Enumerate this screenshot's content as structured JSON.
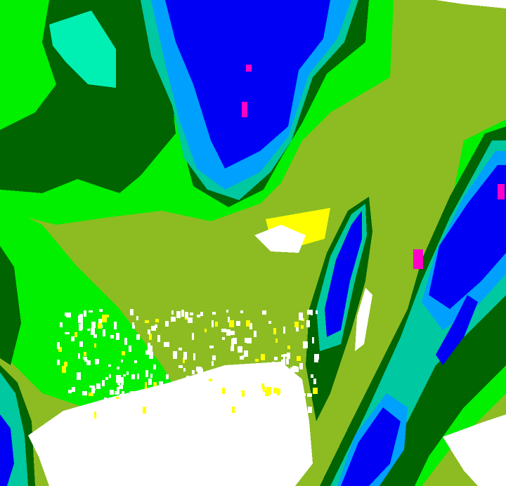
{
  "image": {
    "kind": "false-color classified satellite cloud/surface map",
    "palette": {
      "olive": "#8cbc22",
      "bright_green": "#00f000",
      "dark_green": "#006400",
      "aquamarine": "#00f0b4",
      "teal": "#00c8a0",
      "light_blue": "#00a0ff",
      "blue": "#0000f5",
      "magenta": "#ff00c8",
      "white": "#ffffff",
      "yellow": "#ffff00"
    }
  }
}
